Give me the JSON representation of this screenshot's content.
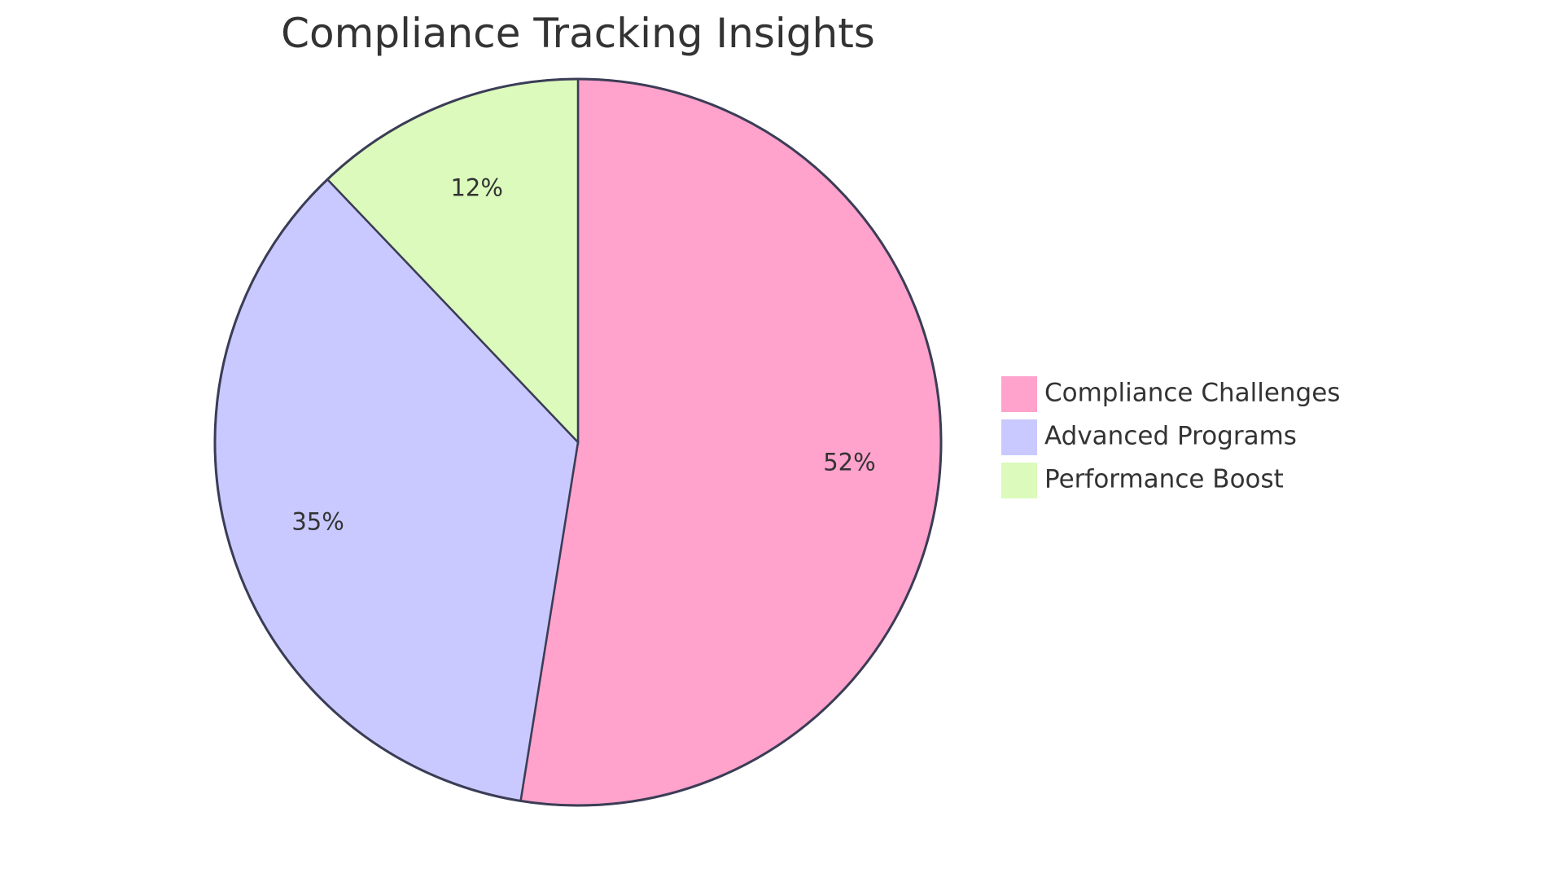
{
  "chart_data": {
    "type": "pie",
    "title": "Compliance Tracking Insights",
    "slices": [
      {
        "label": "Compliance Challenges",
        "value": 52,
        "display": "52%",
        "color": "#ffa2cc"
      },
      {
        "label": "Advanced Programs",
        "value": 35,
        "display": "35%",
        "color": "#c9c9ff"
      },
      {
        "label": "Performance Boost",
        "value": 12,
        "display": "12%",
        "color": "#dbfabc"
      }
    ],
    "legend_position": "right"
  }
}
